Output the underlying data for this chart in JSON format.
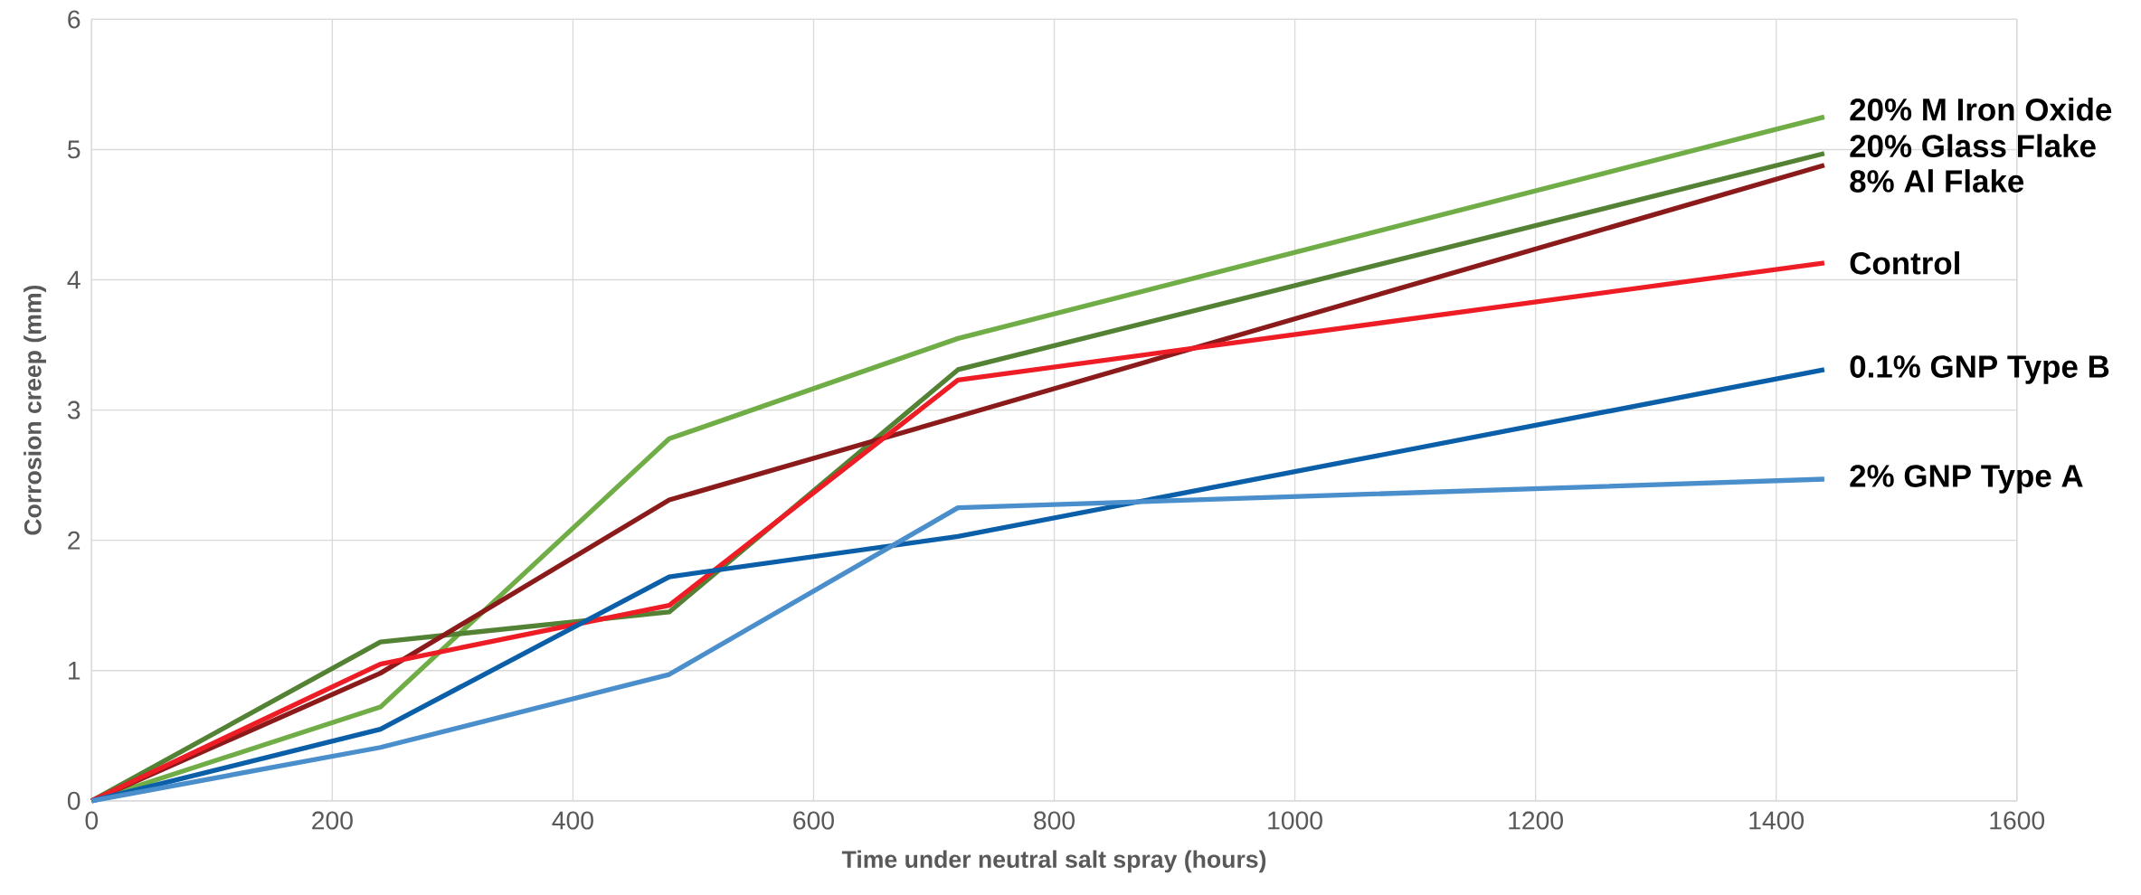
{
  "chart_data": {
    "type": "line",
    "xlabel": "Time under neutral salt spray (hours)",
    "ylabel": "Corrosion creep (mm)",
    "x": [
      0,
      240,
      480,
      720,
      1440
    ],
    "series": [
      {
        "name": "20% M Iron Oxide",
        "color": "#70ad47",
        "values": [
          0,
          0.72,
          2.78,
          3.55,
          5.25
        ]
      },
      {
        "name": "20% Glass Flake",
        "color": "#548235",
        "values": [
          0,
          1.22,
          1.45,
          3.31,
          4.97
        ]
      },
      {
        "name": "8% Al Flake",
        "color": "#8b1a1a",
        "values": [
          0,
          0.98,
          2.31,
          2.95,
          4.88
        ]
      },
      {
        "name": "Control",
        "color": "#ee1c25",
        "values": [
          0,
          1.05,
          1.5,
          3.23,
          4.13
        ]
      },
      {
        "name": "0.1% GNP Type B",
        "color": "#0b5ea8",
        "values": [
          0,
          0.55,
          1.72,
          2.03,
          3.31
        ]
      },
      {
        "name": "2% GNP Type A",
        "color": "#4a8fcc",
        "values": [
          0,
          0.41,
          0.97,
          2.25,
          2.47
        ]
      }
    ],
    "xlim": [
      0,
      1600
    ],
    "ylim": [
      0,
      6
    ],
    "xticks": [
      0,
      200,
      400,
      600,
      800,
      1000,
      1200,
      1400,
      1600
    ],
    "yticks": [
      0,
      1,
      2,
      3,
      4,
      5,
      6
    ],
    "grid": true
  }
}
